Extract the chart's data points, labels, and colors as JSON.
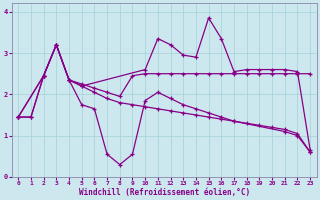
{
  "background_color": "#cce8ee",
  "line_color": "#880088",
  "grid_color": "#aad4dc",
  "xlabel": "Windchill (Refroidissement éolien,°C)",
  "xlim": [
    -0.5,
    23.5
  ],
  "ylim": [
    0,
    4.2
  ],
  "xticks": [
    0,
    1,
    2,
    3,
    4,
    5,
    6,
    7,
    8,
    9,
    10,
    11,
    12,
    13,
    14,
    15,
    16,
    17,
    18,
    19,
    20,
    21,
    22,
    23
  ],
  "yticks": [
    0,
    1,
    2,
    3,
    4
  ],
  "line1_x": [
    0,
    1,
    2,
    3,
    4,
    5,
    6,
    7,
    8,
    9,
    10,
    11,
    12,
    13,
    14,
    15,
    16,
    17,
    18,
    19,
    20,
    21,
    22,
    23
  ],
  "line1_y": [
    1.45,
    1.45,
    2.45,
    3.2,
    2.35,
    2.25,
    2.15,
    2.05,
    1.95,
    2.45,
    2.5,
    2.5,
    2.5,
    2.5,
    2.5,
    2.5,
    2.5,
    2.5,
    2.5,
    2.5,
    2.5,
    2.5,
    2.5,
    2.5
  ],
  "line2_x": [
    0,
    1,
    2,
    3,
    4,
    5,
    6,
    7,
    8,
    9,
    10,
    11,
    12,
    13,
    14,
    15,
    16,
    17,
    18,
    19,
    20,
    21,
    22,
    23
  ],
  "line2_y": [
    1.45,
    1.45,
    2.45,
    3.2,
    2.35,
    2.2,
    2.05,
    1.9,
    1.8,
    1.75,
    1.7,
    1.65,
    1.6,
    1.55,
    1.5,
    1.45,
    1.4,
    1.35,
    1.3,
    1.25,
    1.2,
    1.15,
    1.05,
    0.6
  ],
  "line3_x": [
    0,
    2,
    3,
    4,
    5,
    6,
    7,
    8,
    9,
    10,
    11,
    12,
    13,
    14,
    15,
    16,
    17,
    21,
    22,
    23
  ],
  "line3_y": [
    1.45,
    2.45,
    3.2,
    2.35,
    1.75,
    1.65,
    0.55,
    0.3,
    0.55,
    1.85,
    2.05,
    1.9,
    1.75,
    1.65,
    1.55,
    1.45,
    1.35,
    1.1,
    1.0,
    0.6
  ],
  "line4_x": [
    0,
    2,
    3,
    4,
    5,
    10,
    11,
    12,
    13,
    14,
    15,
    16,
    17,
    18,
    19,
    20,
    21,
    22,
    23
  ],
  "line4_y": [
    1.45,
    2.45,
    3.2,
    2.35,
    2.2,
    2.6,
    3.35,
    3.2,
    2.95,
    2.9,
    3.85,
    3.35,
    2.55,
    2.6,
    2.6,
    2.6,
    2.6,
    2.55,
    0.65
  ]
}
